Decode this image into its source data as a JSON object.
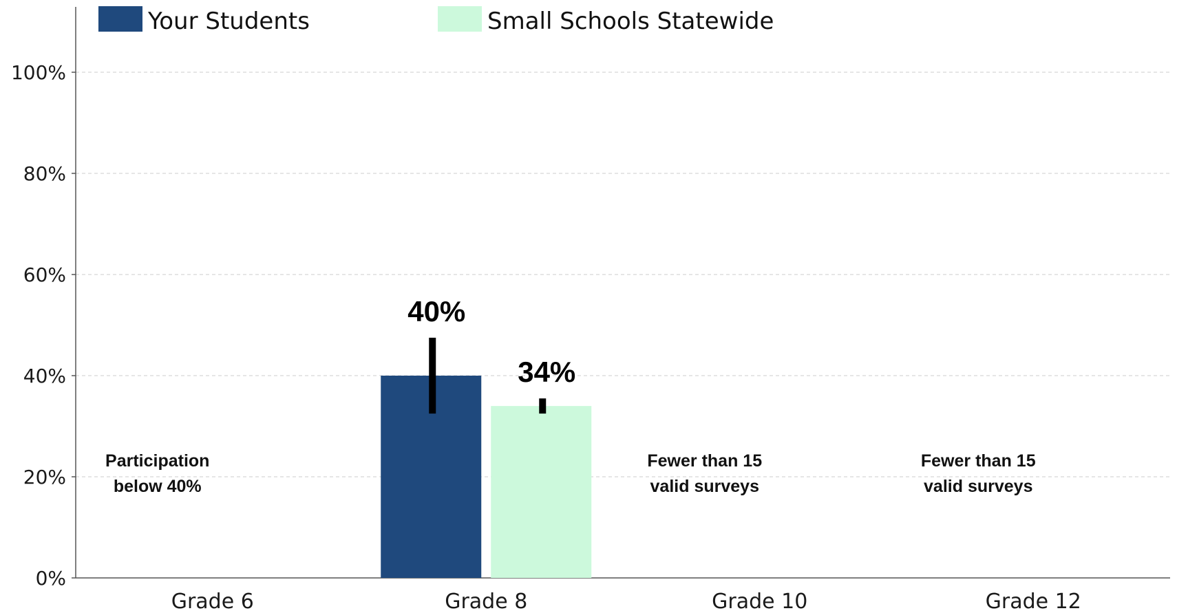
{
  "chart_data": {
    "type": "bar",
    "categories": [
      "Grade 6",
      "Grade 8",
      "Grade 10",
      "Grade 12"
    ],
    "series": [
      {
        "name": "Your Students",
        "color": "#1f497d",
        "values": [
          null,
          40,
          null,
          null
        ],
        "error_low": [
          null,
          32.5,
          null,
          null
        ],
        "error_high": [
          null,
          47.5,
          null,
          null
        ],
        "labels": [
          null,
          "40%",
          null,
          null
        ]
      },
      {
        "name": "Small Schools Statewide",
        "color": "#ccf9dc",
        "values": [
          null,
          34,
          null,
          null
        ],
        "error_low": [
          null,
          32.5,
          null,
          null
        ],
        "error_high": [
          null,
          35.5,
          null,
          null
        ],
        "labels": [
          null,
          "34%",
          null,
          null
        ]
      }
    ],
    "yticks": [
      "0%",
      "20%",
      "40%",
      "60%",
      "80%",
      "100%"
    ],
    "ytick_values": [
      0,
      20,
      40,
      60,
      80,
      100
    ],
    "ylim": [
      0,
      112
    ],
    "grid": true,
    "legend_position": "top",
    "notes": [
      {
        "category": "Grade 6",
        "lines": [
          "Participation",
          "below 40%"
        ]
      },
      {
        "category": "Grade 10",
        "lines": [
          "Fewer than 15",
          "valid surveys"
        ]
      },
      {
        "category": "Grade 12",
        "lines": [
          "Fewer than 15",
          "valid surveys"
        ]
      }
    ],
    "xlabel": "",
    "ylabel": "",
    "title": ""
  }
}
